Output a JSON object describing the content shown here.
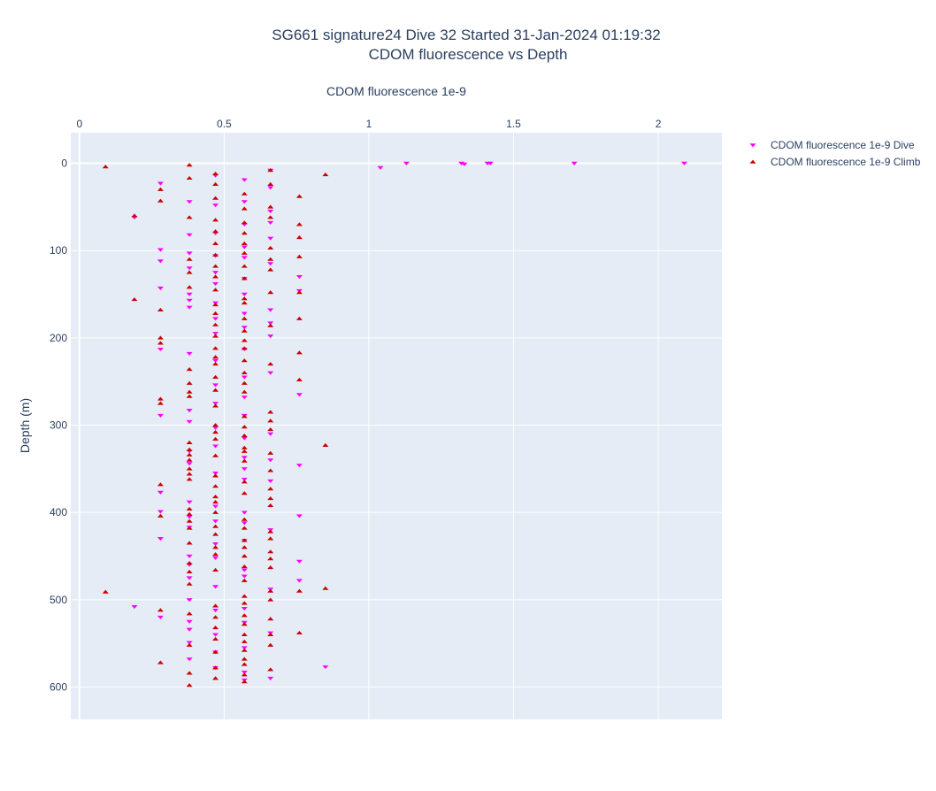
{
  "chart_data": {
    "type": "scatter",
    "title": "SG661 signature24 Dive 32 Started 31-Jan-2024 01:19:32",
    "subtitle": "CDOM fluorescence vs Depth",
    "xlabel": "CDOM fluorescence 1e-9",
    "ylabel": "Depth (m)",
    "xlim": [
      -0.03,
      2.22
    ],
    "ylim": [
      637,
      -35
    ],
    "x_axis_position": "top",
    "y_reversed": true,
    "grid": true,
    "legend_position": "top-right",
    "x_ticks": [
      {
        "value": 0,
        "label": "0"
      },
      {
        "value": 0.5,
        "label": "0.5"
      },
      {
        "value": 1,
        "label": "1"
      },
      {
        "value": 1.5,
        "label": "1.5"
      },
      {
        "value": 2,
        "label": "2"
      }
    ],
    "y_ticks": [
      {
        "value": 0,
        "label": "0"
      },
      {
        "value": 100,
        "label": "100"
      },
      {
        "value": 200,
        "label": "200"
      },
      {
        "value": 300,
        "label": "300"
      },
      {
        "value": 400,
        "label": "400"
      },
      {
        "value": 500,
        "label": "500"
      },
      {
        "value": 600,
        "label": "600"
      }
    ],
    "series": [
      {
        "name": "CDOM fluorescence 1e-9 Dive",
        "marker": "triangle-down",
        "color": "#ff00ff",
        "points": [
          [
            1.13,
            0
          ],
          [
            1.32,
            0
          ],
          [
            1.33,
            1
          ],
          [
            1.41,
            0
          ],
          [
            1.42,
            0
          ],
          [
            1.71,
            0
          ],
          [
            2.09,
            0
          ],
          [
            1.04,
            5
          ],
          [
            0.66,
            8
          ],
          [
            0.47,
            14
          ],
          [
            0.57,
            19
          ],
          [
            0.28,
            23
          ],
          [
            0.66,
            28
          ],
          [
            0.38,
            44
          ],
          [
            0.57,
            44
          ],
          [
            0.47,
            48
          ],
          [
            0.66,
            55
          ],
          [
            0.19,
            62
          ],
          [
            0.66,
            68
          ],
          [
            0.57,
            70
          ],
          [
            0.38,
            82
          ],
          [
            0.47,
            80
          ],
          [
            0.66,
            86
          ],
          [
            0.57,
            96
          ],
          [
            0.28,
            99
          ],
          [
            0.38,
            103
          ],
          [
            0.47,
            106
          ],
          [
            0.57,
            108
          ],
          [
            0.28,
            112
          ],
          [
            0.66,
            115
          ],
          [
            0.38,
            120
          ],
          [
            0.47,
            125
          ],
          [
            0.76,
            130
          ],
          [
            0.57,
            132
          ],
          [
            0.47,
            138
          ],
          [
            0.28,
            143
          ],
          [
            0.76,
            146
          ],
          [
            0.38,
            150
          ],
          [
            0.57,
            150
          ],
          [
            0.38,
            157
          ],
          [
            0.47,
            160
          ],
          [
            0.38,
            165
          ],
          [
            0.66,
            168
          ],
          [
            0.57,
            172
          ],
          [
            0.47,
            178
          ],
          [
            0.66,
            183
          ],
          [
            0.57,
            188
          ],
          [
            0.47,
            195
          ],
          [
            0.66,
            198
          ],
          [
            0.28,
            213
          ],
          [
            0.57,
            213
          ],
          [
            0.38,
            218
          ],
          [
            0.47,
            226
          ],
          [
            0.66,
            240
          ],
          [
            0.57,
            245
          ],
          [
            0.47,
            254
          ],
          [
            0.76,
            265
          ],
          [
            0.57,
            268
          ],
          [
            0.47,
            275
          ],
          [
            0.38,
            283
          ],
          [
            0.57,
            289
          ],
          [
            0.28,
            289
          ],
          [
            0.38,
            296
          ],
          [
            0.47,
            303
          ],
          [
            0.66,
            310
          ],
          [
            0.57,
            315
          ],
          [
            0.47,
            324
          ],
          [
            0.38,
            330
          ],
          [
            0.57,
            337
          ],
          [
            0.66,
            340
          ],
          [
            0.38,
            344
          ],
          [
            0.76,
            346
          ],
          [
            0.57,
            350
          ],
          [
            0.47,
            355
          ],
          [
            0.57,
            362
          ],
          [
            0.66,
            364
          ],
          [
            0.28,
            377
          ],
          [
            0.38,
            388
          ],
          [
            0.47,
            393
          ],
          [
            0.28,
            399
          ],
          [
            0.57,
            400
          ],
          [
            0.76,
            404
          ],
          [
            0.38,
            405
          ],
          [
            0.47,
            410
          ],
          [
            0.57,
            412
          ],
          [
            0.38,
            417
          ],
          [
            0.66,
            420
          ],
          [
            0.28,
            430
          ],
          [
            0.57,
            432
          ],
          [
            0.47,
            436
          ],
          [
            0.38,
            450
          ],
          [
            0.76,
            456
          ],
          [
            0.47,
            452
          ],
          [
            0.38,
            460
          ],
          [
            0.57,
            466
          ],
          [
            0.38,
            475
          ],
          [
            0.57,
            473
          ],
          [
            0.76,
            478
          ],
          [
            0.47,
            485
          ],
          [
            0.66,
            488
          ],
          [
            0.38,
            500
          ],
          [
            0.19,
            508
          ],
          [
            0.57,
            510
          ],
          [
            0.47,
            512
          ],
          [
            0.28,
            520
          ],
          [
            0.38,
            525
          ],
          [
            0.57,
            526
          ],
          [
            0.38,
            534
          ],
          [
            0.66,
            538
          ],
          [
            0.47,
            540
          ],
          [
            0.38,
            549
          ],
          [
            0.57,
            555
          ],
          [
            0.47,
            560
          ],
          [
            0.38,
            568
          ],
          [
            0.85,
            577
          ],
          [
            0.47,
            578
          ],
          [
            0.57,
            583
          ],
          [
            0.66,
            590
          ],
          [
            0.57,
            592
          ]
        ]
      },
      {
        "name": "CDOM fluorescence 1e-9 Climb",
        "marker": "triangle-up",
        "color": "#cc0000",
        "points": [
          [
            0.09,
            4
          ],
          [
            0.38,
            2
          ],
          [
            0.66,
            8
          ],
          [
            0.47,
            12
          ],
          [
            0.85,
            13
          ],
          [
            0.38,
            17
          ],
          [
            0.66,
            24
          ],
          [
            0.47,
            24
          ],
          [
            0.28,
            30
          ],
          [
            0.57,
            35
          ],
          [
            0.76,
            38
          ],
          [
            0.47,
            40
          ],
          [
            0.28,
            43
          ],
          [
            0.66,
            50
          ],
          [
            0.57,
            52
          ],
          [
            0.19,
            60
          ],
          [
            0.38,
            62
          ],
          [
            0.66,
            62
          ],
          [
            0.47,
            65
          ],
          [
            0.57,
            68
          ],
          [
            0.76,
            70
          ],
          [
            0.47,
            78
          ],
          [
            0.57,
            80
          ],
          [
            0.76,
            85
          ],
          [
            0.47,
            92
          ],
          [
            0.57,
            92
          ],
          [
            0.66,
            97
          ],
          [
            0.57,
            103
          ],
          [
            0.47,
            105
          ],
          [
            0.76,
            107
          ],
          [
            0.38,
            110
          ],
          [
            0.66,
            110
          ],
          [
            0.47,
            118
          ],
          [
            0.57,
            118
          ],
          [
            0.38,
            125
          ],
          [
            0.66,
            122
          ],
          [
            0.47,
            130
          ],
          [
            0.57,
            132
          ],
          [
            0.38,
            142
          ],
          [
            0.76,
            148
          ],
          [
            0.47,
            145
          ],
          [
            0.66,
            148
          ],
          [
            0.57,
            155
          ],
          [
            0.19,
            156
          ],
          [
            0.47,
            162
          ],
          [
            0.28,
            168
          ],
          [
            0.57,
            160
          ],
          [
            0.47,
            172
          ],
          [
            0.57,
            178
          ],
          [
            0.76,
            178
          ],
          [
            0.47,
            185
          ],
          [
            0.66,
            186
          ],
          [
            0.57,
            192
          ],
          [
            0.47,
            198
          ],
          [
            0.28,
            200
          ],
          [
            0.57,
            203
          ],
          [
            0.28,
            206
          ],
          [
            0.47,
            212
          ],
          [
            0.57,
            212
          ],
          [
            0.76,
            217
          ],
          [
            0.47,
            222
          ],
          [
            0.57,
            226
          ],
          [
            0.66,
            230
          ],
          [
            0.47,
            230
          ],
          [
            0.38,
            236
          ],
          [
            0.57,
            240
          ],
          [
            0.47,
            245
          ],
          [
            0.76,
            248
          ],
          [
            0.38,
            252
          ],
          [
            0.57,
            252
          ],
          [
            0.47,
            260
          ],
          [
            0.38,
            262
          ],
          [
            0.57,
            262
          ],
          [
            0.38,
            267
          ],
          [
            0.28,
            270
          ],
          [
            0.28,
            275
          ],
          [
            0.47,
            278
          ],
          [
            0.66,
            285
          ],
          [
            0.57,
            290
          ],
          [
            0.66,
            295
          ],
          [
            0.47,
            300
          ],
          [
            0.57,
            302
          ],
          [
            0.47,
            308
          ],
          [
            0.66,
            305
          ],
          [
            0.57,
            312
          ],
          [
            0.47,
            316
          ],
          [
            0.38,
            320
          ],
          [
            0.85,
            323
          ],
          [
            0.38,
            328
          ],
          [
            0.57,
            326
          ],
          [
            0.38,
            334
          ],
          [
            0.47,
            335
          ],
          [
            0.57,
            330
          ],
          [
            0.66,
            332
          ],
          [
            0.38,
            340
          ],
          [
            0.57,
            341
          ],
          [
            0.38,
            350
          ],
          [
            0.66,
            352
          ],
          [
            0.38,
            356
          ],
          [
            0.47,
            358
          ],
          [
            0.38,
            362
          ],
          [
            0.57,
            365
          ],
          [
            0.28,
            368
          ],
          [
            0.47,
            370
          ],
          [
            0.66,
            373
          ],
          [
            0.57,
            378
          ],
          [
            0.47,
            382
          ],
          [
            0.66,
            384
          ],
          [
            0.47,
            388
          ],
          [
            0.66,
            392
          ],
          [
            0.38,
            396
          ],
          [
            0.28,
            404
          ],
          [
            0.38,
            402
          ],
          [
            0.47,
            400
          ],
          [
            0.57,
            408
          ],
          [
            0.38,
            410
          ],
          [
            0.47,
            416
          ],
          [
            0.38,
            418
          ],
          [
            0.57,
            418
          ],
          [
            0.66,
            422
          ],
          [
            0.47,
            425
          ],
          [
            0.66,
            430
          ],
          [
            0.57,
            432
          ],
          [
            0.38,
            435
          ],
          [
            0.47,
            440
          ],
          [
            0.57,
            440
          ],
          [
            0.66,
            445
          ],
          [
            0.47,
            448
          ],
          [
            0.57,
            450
          ],
          [
            0.66,
            453
          ],
          [
            0.38,
            458
          ],
          [
            0.57,
            462
          ],
          [
            0.47,
            466
          ],
          [
            0.38,
            468
          ],
          [
            0.66,
            463
          ],
          [
            0.57,
            478
          ],
          [
            0.38,
            482
          ],
          [
            0.85,
            487
          ],
          [
            0.76,
            490
          ],
          [
            0.66,
            490
          ],
          [
            0.09,
            491
          ],
          [
            0.57,
            496
          ],
          [
            0.66,
            500
          ],
          [
            0.57,
            504
          ],
          [
            0.47,
            507
          ],
          [
            0.28,
            512
          ],
          [
            0.38,
            516
          ],
          [
            0.57,
            518
          ],
          [
            0.47,
            520
          ],
          [
            0.66,
            522
          ],
          [
            0.57,
            528
          ],
          [
            0.47,
            532
          ],
          [
            0.76,
            538
          ],
          [
            0.66,
            540
          ],
          [
            0.57,
            540
          ],
          [
            0.47,
            545
          ],
          [
            0.57,
            548
          ],
          [
            0.38,
            552
          ],
          [
            0.66,
            552
          ],
          [
            0.57,
            558
          ],
          [
            0.47,
            560
          ],
          [
            0.57,
            568
          ],
          [
            0.28,
            572
          ],
          [
            0.57,
            574
          ],
          [
            0.47,
            578
          ],
          [
            0.66,
            580
          ],
          [
            0.38,
            584
          ],
          [
            0.57,
            586
          ],
          [
            0.47,
            590
          ],
          [
            0.57,
            594
          ],
          [
            0.38,
            598
          ]
        ]
      }
    ]
  }
}
